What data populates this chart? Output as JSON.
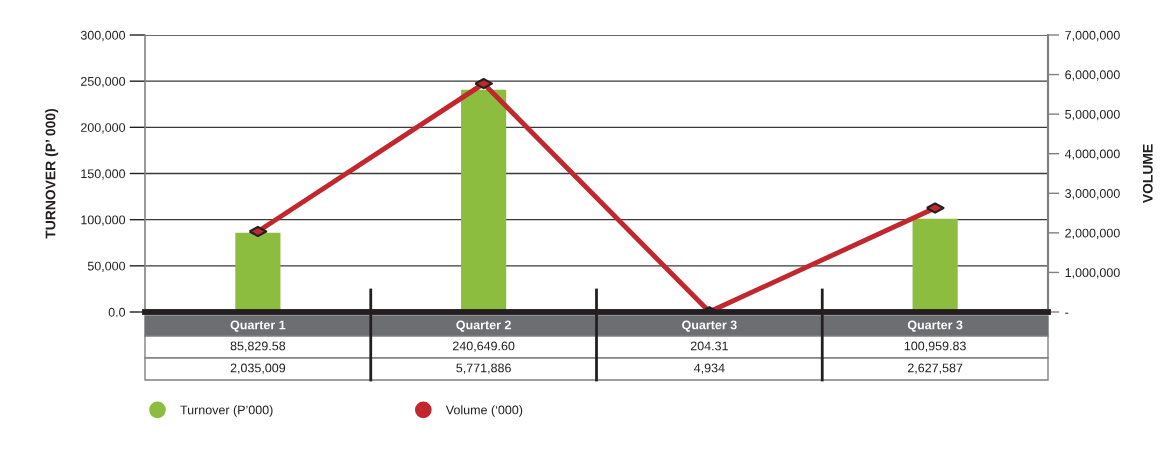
{
  "chart_data": {
    "type": "bar",
    "categories": [
      "Quarter 1",
      "Quarter 2",
      "Quarter 3",
      "Quarter 3"
    ],
    "series": [
      {
        "name": "Turnover (P’000)",
        "color": "#8cbd3f",
        "values": [
          85829.58,
          240649.6,
          204.31,
          100959.83
        ],
        "value_labels": [
          "85,829.58",
          "240,649.60",
          "204.31",
          "100,959.83"
        ]
      },
      {
        "name": "Volume (‘000)",
        "type": "line",
        "axis": "y2",
        "color": "#c1272d",
        "values": [
          2035009,
          5771886,
          4934,
          2627587
        ],
        "value_labels": [
          "2,035,009",
          "5,771,886",
          "4,934",
          "2,627,587"
        ]
      }
    ],
    "ylabel": "TURNOVER (P’ 000)",
    "y2label": "VOLUME",
    "ylim": [
      0,
      300000
    ],
    "yticks": [
      {
        "value": 0,
        "label": "0.0"
      },
      {
        "value": 50000,
        "label": "50,000"
      },
      {
        "value": 100000,
        "label": "100,000"
      },
      {
        "value": 150000,
        "label": "150,000"
      },
      {
        "value": 200000,
        "label": "200,000"
      },
      {
        "value": 250000,
        "label": "250,000"
      },
      {
        "value": 300000,
        "label": "300,000"
      }
    ],
    "y2lim": [
      0,
      7000000
    ],
    "y2ticks": [
      {
        "value": 0,
        "label": "-"
      },
      {
        "value": 1000000,
        "label": "1,000,000"
      },
      {
        "value": 2000000,
        "label": "2,000,000"
      },
      {
        "value": 3000000,
        "label": "3,000,000"
      },
      {
        "value": 4000000,
        "label": "4,000,000"
      },
      {
        "value": 5000000,
        "label": "5,000,000"
      },
      {
        "value": 6000000,
        "label": "6,000,000"
      },
      {
        "value": 7000000,
        "label": "7,000,000"
      }
    ],
    "grid": "y",
    "legend": "bottom",
    "marker": "diamond",
    "line_style": "solid"
  }
}
